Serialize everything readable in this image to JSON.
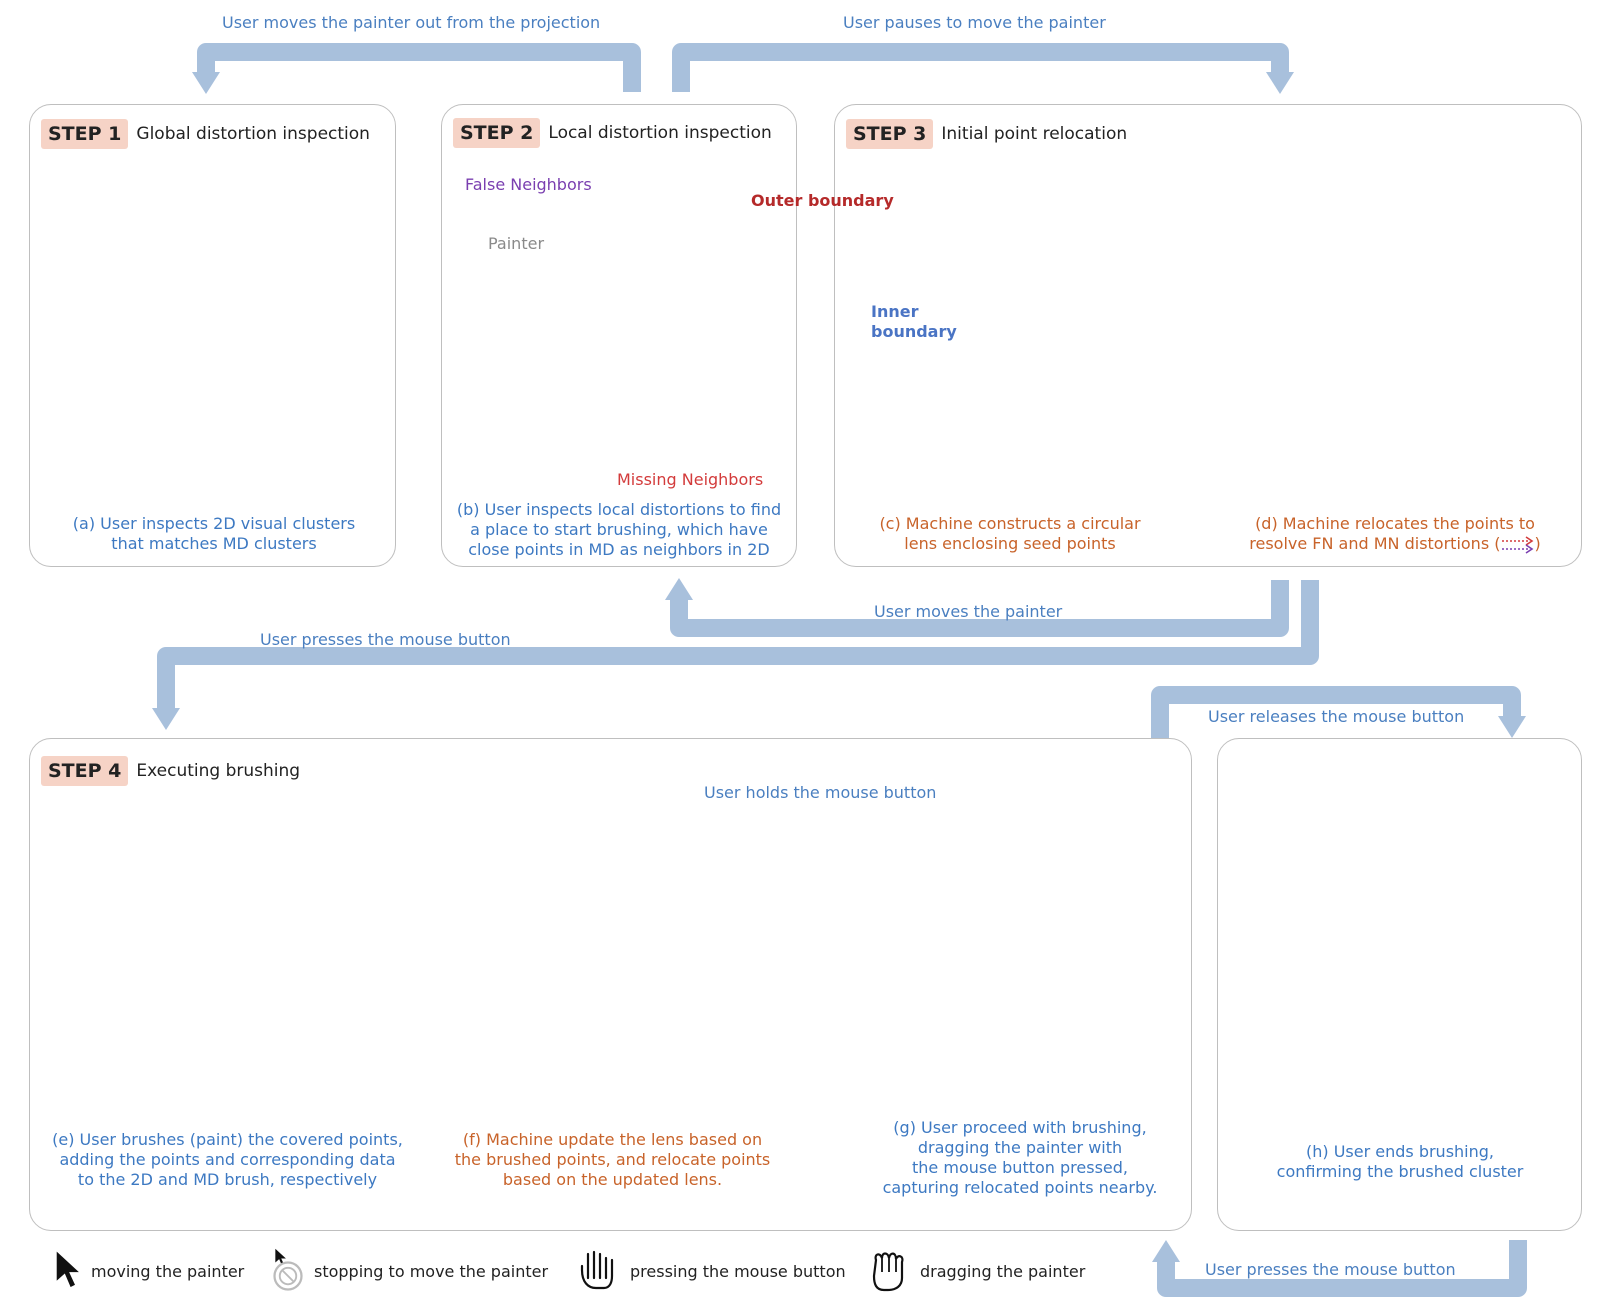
{
  "flows": {
    "top_left": "User moves the painter out from the projection",
    "top_right": "User pauses to move the painter",
    "mid_back": "User moves the painter",
    "mid_left": "User presses the mouse button",
    "mid_right": "User releases the mouse button",
    "step4_loop": "User holds the mouse button",
    "bottom_right": "User presses the mouse button"
  },
  "steps": {
    "s1": {
      "badge": "STEP 1",
      "title": "Global distortion inspection"
    },
    "s2": {
      "badge": "STEP 2",
      "title": "Local distortion inspection"
    },
    "s3": {
      "badge": "STEP 3",
      "title": "Initial point relocation"
    },
    "s4": {
      "badge": "STEP 4",
      "title": "Executing brushing"
    }
  },
  "annotations": {
    "false_neighbors": "False Neighbors",
    "painter": "Painter",
    "missing_neighbors": "Missing Neighbors",
    "outer_boundary": "Outer boundary",
    "inner_boundary_1": "Inner",
    "inner_boundary_2": "boundary"
  },
  "captions": {
    "a": [
      "(a)  User inspects 2D visual clusters",
      "that matches MD clusters"
    ],
    "b": [
      "(b) User inspects local distortions to find",
      "a place to start brushing, which have",
      "close points in MD as neighbors in 2D"
    ],
    "c": [
      "(c) Machine constructs a circular",
      "lens enclosing seed points"
    ],
    "d": [
      "(d) Machine relocates the points to",
      "resolve FN and MN distortions (",
      ")"
    ],
    "e": [
      "(e) User brushes (paint) the covered points,",
      "adding the points and corresponding data",
      "to the 2D and MD brush, respectively"
    ],
    "f": [
      "(f) Machine update the lens based on",
      "the brushed points, and relocate points",
      "based on the updated lens."
    ],
    "g": [
      "(g) User proceed with brushing,",
      "dragging the painter with",
      "the mouse button pressed,",
      "capturing relocated points nearby."
    ],
    "h": [
      "(h) User ends brushing,",
      "confirming the brushed cluster"
    ]
  },
  "legend": {
    "moving": "moving the painter",
    "stopping": "stopping to move the painter",
    "pressing": "pressing the mouse button",
    "dragging": "dragging the painter"
  },
  "icons": [
    "cursor-arrow-icon",
    "no-entry-icon",
    "hand-press-icon",
    "hand-drag-icon",
    "flow-arrow-icon"
  ],
  "colors": {
    "flow_arrow": "#a8c0dc",
    "flow_text": "#4a7fc0",
    "badge": "#f6d3c6",
    "lens_outer": "#b52a2a",
    "lens_inner": "#4a74c4",
    "painter_fill": "#d9eee0",
    "brushed_point": "#3e6fb0",
    "brushed_point_light": "#9ebde6",
    "false_neighbor_arrow": "#7a3fb0",
    "missing_neighbor_arrow": "#d33b3b",
    "caption_blue": "#3d79c2",
    "caption_orange": "#c8632a"
  }
}
